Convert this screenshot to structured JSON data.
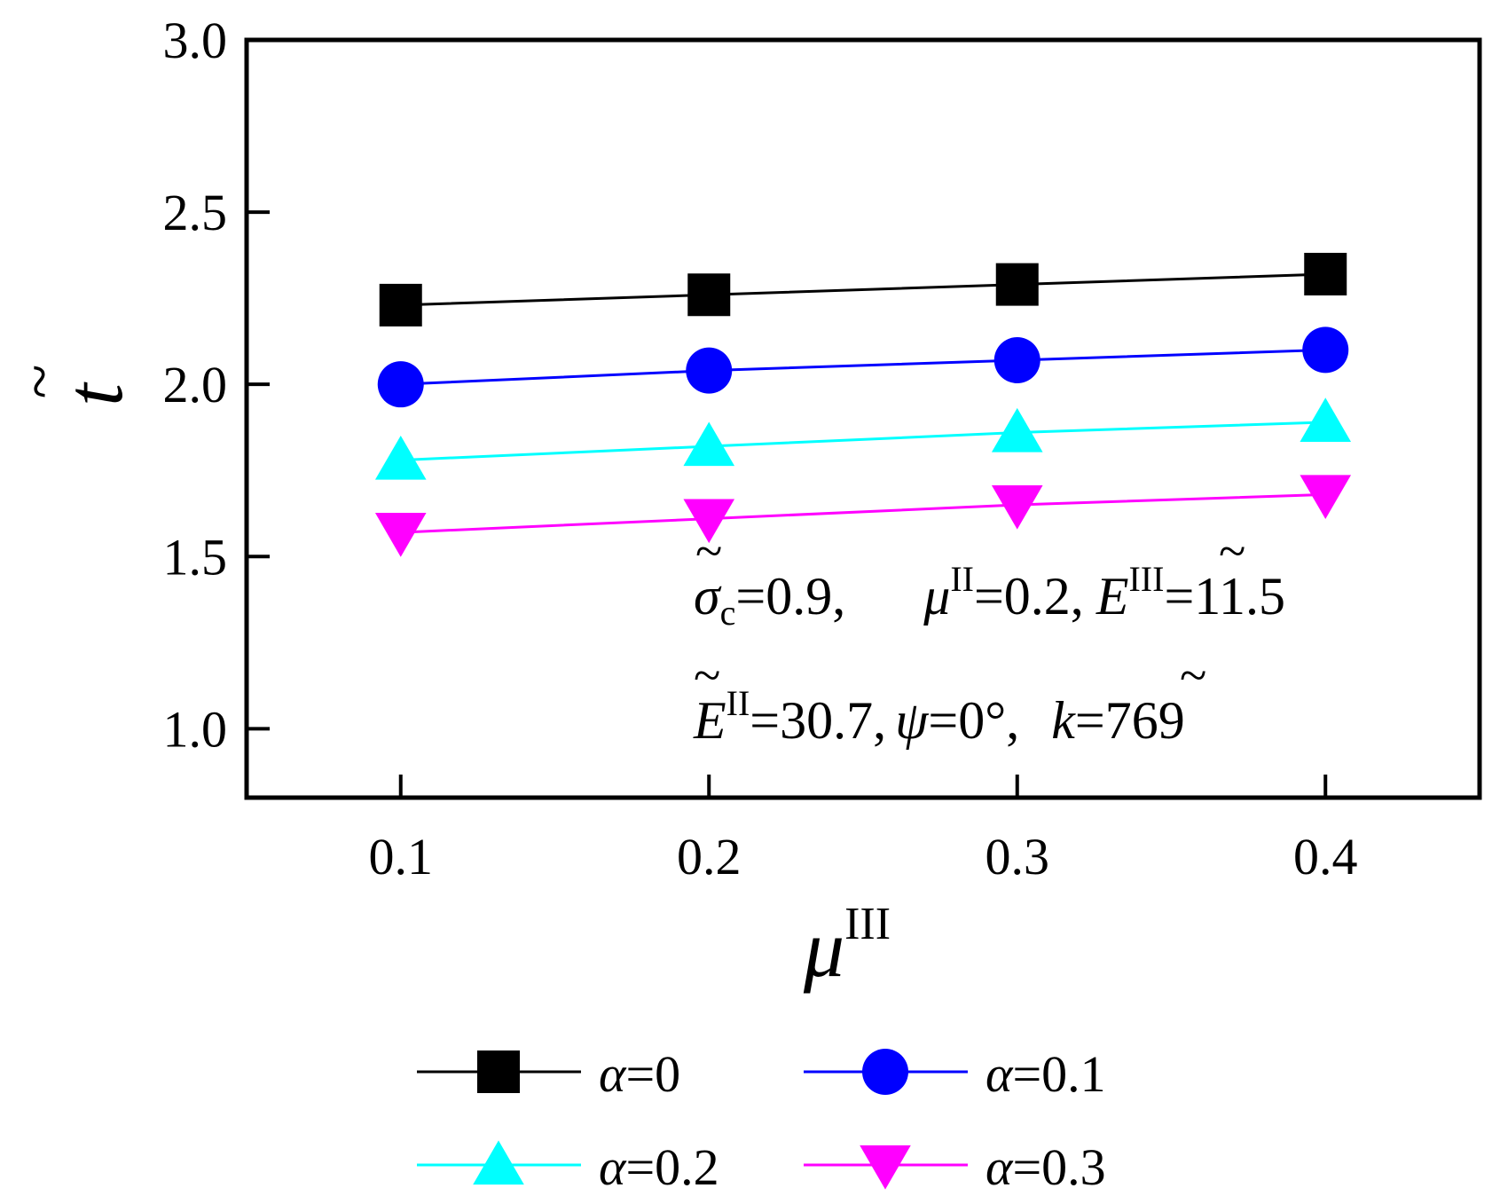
{
  "chart_data": {
    "type": "line",
    "title": "",
    "xlabel": "μ",
    "xlabel_sup": "III",
    "ylabel": "t",
    "ylabel_accent": "~",
    "x": [
      0.1,
      0.2,
      0.3,
      0.4
    ],
    "xlim": [
      0.05,
      0.45
    ],
    "ylim": [
      0.8,
      3.0
    ],
    "xticks": [
      0.1,
      0.2,
      0.3,
      0.4
    ],
    "xtick_labels": [
      "0.1",
      "0.2",
      "0.3",
      "0.4"
    ],
    "yticks": [
      1.0,
      1.5,
      2.0,
      2.5,
      3.0
    ],
    "ytick_labels": [
      "1.0",
      "1.5",
      "2.0",
      "2.5",
      "3.0"
    ],
    "grid": false,
    "legend_position": "bottom",
    "series": [
      {
        "name": "α=0",
        "legend_symbol": "α",
        "legend_value": "=0",
        "color": "#000000",
        "marker": "square",
        "values": [
          2.23,
          2.26,
          2.29,
          2.32
        ]
      },
      {
        "name": "α=0.1",
        "legend_symbol": "α",
        "legend_value": "=0.1",
        "color": "#0000ff",
        "marker": "circle",
        "values": [
          2.0,
          2.04,
          2.07,
          2.1
        ]
      },
      {
        "name": "α=0.2",
        "legend_symbol": "α",
        "legend_value": "=0.2",
        "color": "#00ffff",
        "marker": "triangle-up",
        "values": [
          1.78,
          1.82,
          1.86,
          1.89
        ]
      },
      {
        "name": "α=0.3",
        "legend_symbol": "α",
        "legend_value": "=0.3",
        "color": "#ff00ff",
        "marker": "triangle-down",
        "values": [
          1.57,
          1.61,
          1.65,
          1.68
        ]
      }
    ],
    "annotations": {
      "line1": {
        "sigma_symbol": "σ",
        "sigma_sub": "c",
        "sigma_value": "=0.9,",
        "mu_symbol": "μ",
        "mu_sup": "II",
        "mu_value": "=0.2,",
        "e3_symbol": "E",
        "e3_sup": "III",
        "e3_value": "=11.5"
      },
      "line2": {
        "e2_symbol": "E",
        "e2_sup": "II",
        "e2_value": "=30.7,",
        "psi_symbol": "ψ",
        "psi_value": "=0°,",
        "k_symbol": "k",
        "k_value": "=769"
      },
      "tilde": "~"
    }
  }
}
